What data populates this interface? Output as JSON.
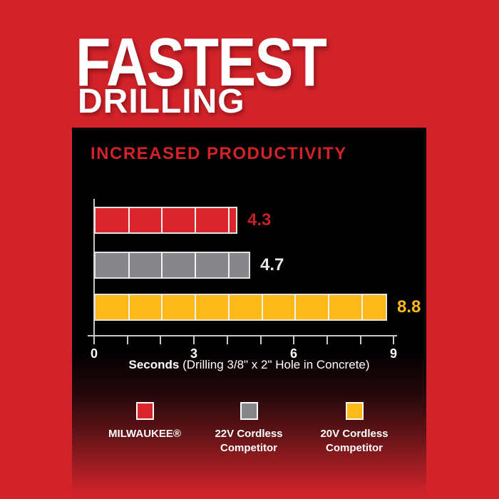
{
  "page": {
    "background_color": "#d2232a",
    "title_line1": "FASTEST",
    "title_line2": "DRILLING"
  },
  "panel": {
    "heading": "INCREASED PRODUCTIVITY",
    "heading_color": "#d2232a",
    "background_color": "#000000"
  },
  "chart_data": {
    "type": "bar",
    "orientation": "horizontal",
    "title": "INCREASED PRODUCTIVITY",
    "xlabel_bold": "Seconds",
    "xlabel_rest": " (Drilling 3/8\" x 2\" Hole in Concrete)",
    "xlim": [
      0,
      9
    ],
    "x_ticks": [
      0,
      1,
      2,
      3,
      4,
      5,
      6,
      7,
      8,
      9
    ],
    "x_tick_labeled_values": [
      0,
      3,
      6,
      9
    ],
    "x_tick_labels": [
      "0",
      "3",
      "6",
      "9"
    ],
    "grid": false,
    "legend_position": "bottom",
    "axis_color": "#c9c9c9",
    "segment_divider_color": "#f2f2f2",
    "series": [
      {
        "name": "MILWAUKEE®",
        "value": 4.3,
        "value_label": "4.3",
        "color": "#d9262d",
        "value_color": "#c32127"
      },
      {
        "name": "22V Cordless Competitor",
        "value": 4.7,
        "value_label": "4.7",
        "color": "#85878a",
        "value_color": "#e8e8e8"
      },
      {
        "name": "20V Cordless Competitor",
        "value": 8.8,
        "value_label": "8.8",
        "color": "#fdb917",
        "value_color": "#fdb917"
      }
    ]
  },
  "legend": {
    "items": [
      {
        "label_lines": [
          "MILWAUKEE®"
        ],
        "color": "#d9262d"
      },
      {
        "label_lines": [
          "22V Cordless",
          "Competitor"
        ],
        "color": "#85878a"
      },
      {
        "label_lines": [
          "20V Cordless",
          "Competitor"
        ],
        "color": "#fdb917"
      }
    ]
  }
}
